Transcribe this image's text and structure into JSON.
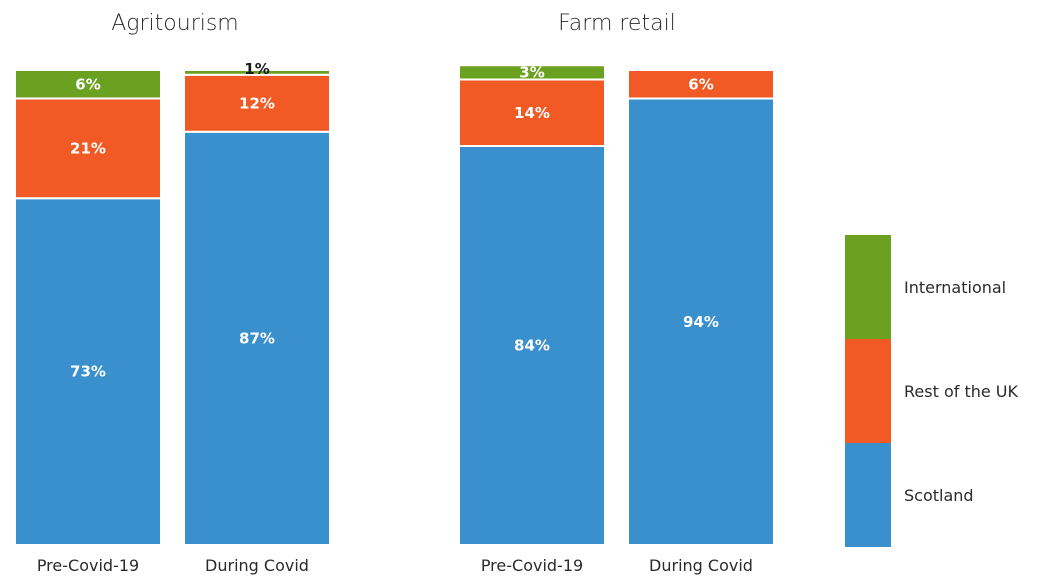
{
  "chart_data": [
    {
      "type": "bar",
      "stacked": true,
      "title": "Agritourism",
      "categories": [
        "Pre-Covid-19",
        "During Covid"
      ],
      "ylim": [
        0,
        100
      ],
      "series": [
        {
          "name": "Scotland",
          "values": [
            73,
            87
          ],
          "labels": [
            "73%",
            "87%"
          ]
        },
        {
          "name": "Rest of the UK",
          "values": [
            21,
            12
          ],
          "labels": [
            "21%",
            "12%"
          ]
        },
        {
          "name": "International",
          "values": [
            6,
            1
          ],
          "labels": [
            "6%",
            "1%"
          ]
        }
      ]
    },
    {
      "type": "bar",
      "stacked": true,
      "title": "Farm retail",
      "categories": [
        "Pre-Covid-19",
        "During Covid"
      ],
      "ylim": [
        0,
        100
      ],
      "series": [
        {
          "name": "Scotland",
          "values": [
            84,
            94
          ],
          "labels": [
            "84%",
            "94%"
          ]
        },
        {
          "name": "Rest of the UK",
          "values": [
            14,
            6
          ],
          "labels": [
            "14%",
            "6%"
          ]
        },
        {
          "name": "International",
          "values": [
            3,
            0
          ],
          "labels": [
            "3%",
            ""
          ]
        }
      ]
    }
  ],
  "legend": {
    "placement": "right",
    "items": [
      {
        "label": "International",
        "color": "#6aa121"
      },
      {
        "label": "Rest of the UK",
        "color": "#f15a24"
      },
      {
        "label": "Scotland",
        "color": "#3a8fcd"
      }
    ]
  },
  "colors": {
    "Scotland": "#3a8fcd",
    "Rest of the UK": "#f15a24",
    "International": "#6aa121"
  }
}
